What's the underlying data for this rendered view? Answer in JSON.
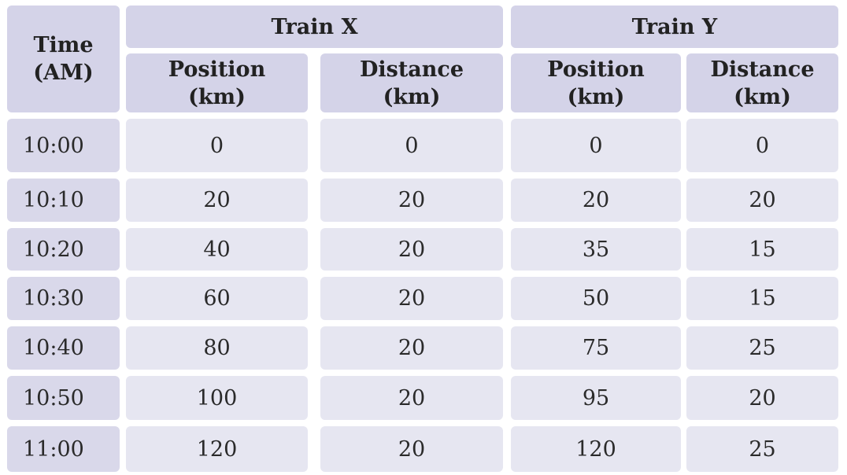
{
  "table": {
    "time_header": [
      "Time",
      "(AM)"
    ],
    "groups": [
      {
        "name": "Train X",
        "columns": [
          {
            "line1": "Position",
            "line2": "(km)"
          },
          {
            "line1": "Distance",
            "line2": "(km)"
          }
        ]
      },
      {
        "name": "Train Y",
        "columns": [
          {
            "line1": "Position",
            "line2": "(km)"
          },
          {
            "line1": "Distance",
            "line2": "(km)"
          }
        ]
      }
    ],
    "rows": [
      {
        "time": "10:00",
        "x_pos": "0",
        "x_dist": "0",
        "y_pos": "0",
        "y_dist": "0"
      },
      {
        "time": "10:10",
        "x_pos": "20",
        "x_dist": "20",
        "y_pos": "20",
        "y_dist": "20"
      },
      {
        "time": "10:20",
        "x_pos": "40",
        "x_dist": "20",
        "y_pos": "35",
        "y_dist": "15"
      },
      {
        "time": "10:30",
        "x_pos": "60",
        "x_dist": "20",
        "y_pos": "50",
        "y_dist": "15"
      },
      {
        "time": "10:40",
        "x_pos": "80",
        "x_dist": "20",
        "y_pos": "75",
        "y_dist": "25"
      },
      {
        "time": "10:50",
        "x_pos": "100",
        "x_dist": "20",
        "y_pos": "95",
        "y_dist": "20"
      },
      {
        "time": "11:00",
        "x_pos": "120",
        "x_dist": "20",
        "y_pos": "120",
        "y_dist": "25"
      }
    ]
  },
  "colors": {
    "header_bg": "#d4d3e8",
    "cell_bg": "#e6e6f1",
    "time_bg": "#d9d8ea"
  }
}
